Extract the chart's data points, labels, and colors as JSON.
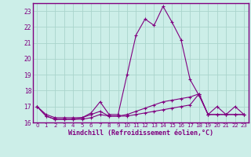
{
  "x": [
    0,
    1,
    2,
    3,
    4,
    5,
    6,
    7,
    8,
    9,
    10,
    11,
    12,
    13,
    14,
    15,
    16,
    17,
    18,
    19,
    20,
    21,
    22,
    23
  ],
  "line1": [
    17.0,
    16.5,
    16.3,
    16.3,
    16.3,
    16.3,
    16.6,
    17.3,
    16.5,
    16.5,
    19.0,
    21.5,
    22.5,
    22.1,
    23.3,
    22.3,
    21.2,
    18.7,
    17.7,
    16.5,
    17.0,
    16.5,
    17.0,
    16.5
  ],
  "line2": [
    17.0,
    16.4,
    16.2,
    16.2,
    16.2,
    16.2,
    16.3,
    16.5,
    16.4,
    16.4,
    16.4,
    16.5,
    16.6,
    16.7,
    16.8,
    16.9,
    17.0,
    17.1,
    17.8,
    16.5,
    16.5,
    16.5,
    16.5,
    16.5
  ],
  "line3": [
    17.0,
    16.4,
    16.2,
    16.2,
    16.2,
    16.3,
    16.5,
    16.7,
    16.4,
    16.4,
    16.5,
    16.7,
    16.9,
    17.1,
    17.3,
    17.4,
    17.5,
    17.6,
    17.8,
    16.5,
    16.5,
    16.5,
    16.5,
    16.5
  ],
  "ylim": [
    16,
    23.5
  ],
  "xlim": [
    -0.5,
    23.5
  ],
  "yticks": [
    16,
    17,
    18,
    19,
    20,
    21,
    22,
    23
  ],
  "xticks": [
    0,
    1,
    2,
    3,
    4,
    5,
    6,
    7,
    8,
    9,
    10,
    11,
    12,
    13,
    14,
    15,
    16,
    17,
    18,
    19,
    20,
    21,
    22,
    23
  ],
  "line_color": "#800080",
  "bg_color": "#cceee8",
  "grid_color": "#aad4cc",
  "xlabel": "Windchill (Refroidissement éolien,°C)",
  "marker": "+",
  "marker_size": 3,
  "linewidth": 0.8
}
